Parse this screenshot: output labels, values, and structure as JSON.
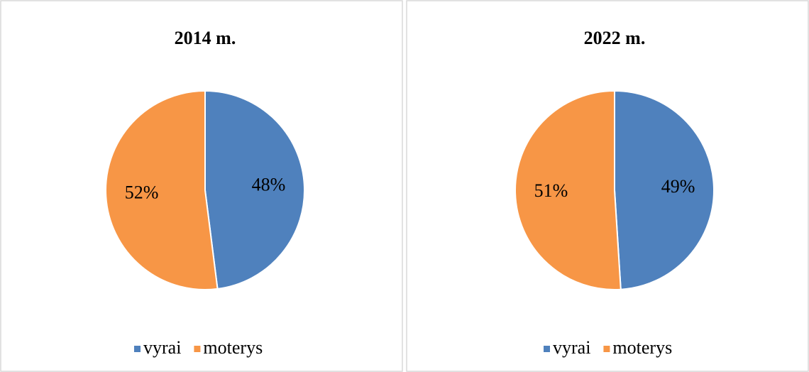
{
  "chart_data": [
    {
      "type": "pie",
      "title": "2014 m.",
      "categories": [
        "vyrai",
        "moterys"
      ],
      "values": [
        48,
        52
      ],
      "value_labels": [
        "48%",
        "52%"
      ],
      "colors": [
        "#4f81bd",
        "#f79646"
      ]
    },
    {
      "type": "pie",
      "title": "2022 m.",
      "categories": [
        "vyrai",
        "moterys"
      ],
      "values": [
        49,
        51
      ],
      "value_labels": [
        "49%",
        "51%"
      ],
      "colors": [
        "#4f81bd",
        "#f79646"
      ]
    }
  ]
}
